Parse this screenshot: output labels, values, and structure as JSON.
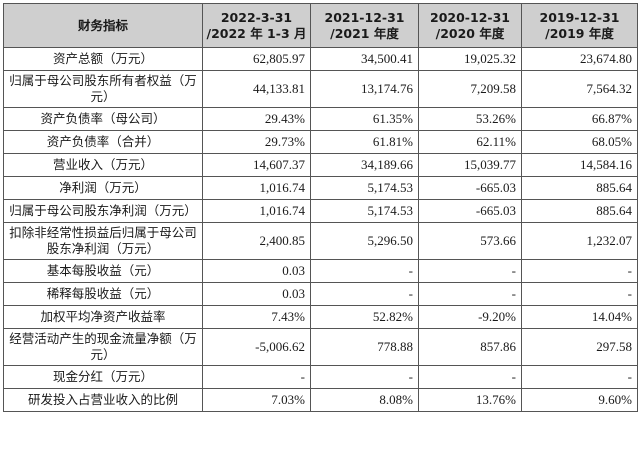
{
  "table": {
    "header": {
      "label": "财务指标",
      "columns": [
        {
          "line1": "2022-3-31",
          "line2": "/2022 年 1-3 月"
        },
        {
          "line1": "2021-12-31",
          "line2": "/2021 年度"
        },
        {
          "line1": "2020-12-31",
          "line2": "/2020 年度"
        },
        {
          "line1": "2019-12-31",
          "line2": "/2019 年度"
        }
      ]
    },
    "rows": [
      {
        "label": "资产总额（万元）",
        "values": [
          "62,805.97",
          "34,500.41",
          "19,025.32",
          "23,674.80"
        ]
      },
      {
        "label": "归属于母公司股东所有者权益（万元）",
        "values": [
          "44,133.81",
          "13,174.76",
          "7,209.58",
          "7,564.32"
        ]
      },
      {
        "label": "资产负债率（母公司）",
        "values": [
          "29.43%",
          "61.35%",
          "53.26%",
          "66.87%"
        ]
      },
      {
        "label": "资产负债率（合并）",
        "values": [
          "29.73%",
          "61.81%",
          "62.11%",
          "68.05%"
        ]
      },
      {
        "label": "营业收入（万元）",
        "values": [
          "14,607.37",
          "34,189.66",
          "15,039.77",
          "14,584.16"
        ]
      },
      {
        "label": "净利润（万元）",
        "values": [
          "1,016.74",
          "5,174.53",
          "-665.03",
          "885.64"
        ]
      },
      {
        "label": "归属于母公司股东净利润（万元）",
        "values": [
          "1,016.74",
          "5,174.53",
          "-665.03",
          "885.64"
        ]
      },
      {
        "label": "扣除非经常性损益后归属于母公司股东净利润（万元）",
        "values": [
          "2,400.85",
          "5,296.50",
          "573.66",
          "1,232.07"
        ]
      },
      {
        "label": "基本每股收益（元）",
        "values": [
          "0.03",
          "-",
          "-",
          "-"
        ]
      },
      {
        "label": "稀释每股收益（元）",
        "values": [
          "0.03",
          "-",
          "-",
          "-"
        ]
      },
      {
        "label": "加权平均净资产收益率",
        "values": [
          "7.43%",
          "52.82%",
          "-9.20%",
          "14.04%"
        ]
      },
      {
        "label": "经营活动产生的现金流量净额（万元）",
        "values": [
          "-5,006.62",
          "778.88",
          "857.86",
          "297.58"
        ]
      },
      {
        "label": "现金分红（万元）",
        "values": [
          "-",
          "-",
          "-",
          "-"
        ]
      },
      {
        "label": "研发投入占营业收入的比例",
        "values": [
          "7.03%",
          "8.08%",
          "13.76%",
          "9.60%"
        ]
      }
    ]
  }
}
